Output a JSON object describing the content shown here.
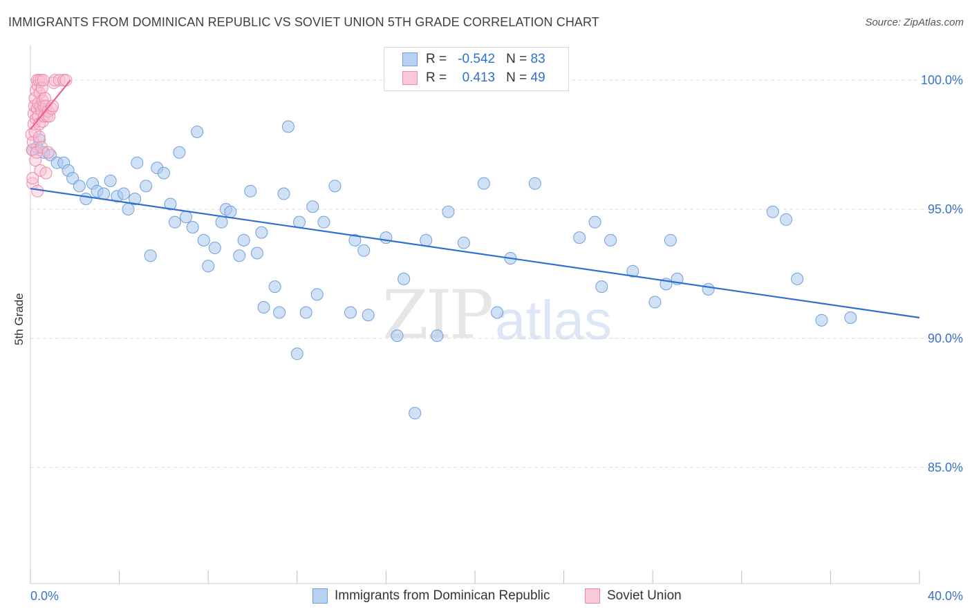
{
  "title": "IMMIGRANTS FROM DOMINICAN REPUBLIC VS SOVIET UNION 5TH GRADE CORRELATION CHART",
  "source": "Source: ZipAtlas.com",
  "watermark": {
    "zip": "ZIP",
    "atlas": "atlas"
  },
  "legend": {
    "rows": [
      {
        "r_label": "R =",
        "r_value": "-0.542",
        "n_label": "N =",
        "n_value": "83"
      },
      {
        "r_label": "R =",
        "r_value": "0.413",
        "n_label": "N =",
        "n_value": "49"
      }
    ]
  },
  "colors": {
    "blue_fill": "#aac8ef",
    "blue_stroke": "#6f9fdc",
    "blue_line": "#2f6fd1",
    "pink_fill": "#f8bfd0",
    "pink_stroke": "#ec8aa9",
    "pink_line": "#e8628d",
    "tick_text": "#3a72c8",
    "grid": "#dcdcdc"
  },
  "chart_data": {
    "type": "scatter",
    "title": "IMMIGRANTS FROM DOMINICAN REPUBLIC VS SOVIET UNION 5TH GRADE CORRELATION CHART",
    "xlabel": "",
    "ylabel": "5th Grade",
    "xlim": [
      0,
      40
    ],
    "ylim": [
      80.5,
      101.5
    ],
    "x_tick_labels": {
      "left": "0.0%",
      "right": "40.0%"
    },
    "y_ticks": [
      {
        "value": 100,
        "label": "100.0%"
      },
      {
        "value": 95,
        "label": "95.0%"
      },
      {
        "value": 90,
        "label": "90.0%"
      },
      {
        "value": 85,
        "label": "85.0%"
      }
    ],
    "series": [
      {
        "name": "Immigrants from Dominican Republic",
        "color": "blue",
        "r": -0.542,
        "n": 83,
        "trend": {
          "x0": 0,
          "y0": 95.8,
          "x1": 40,
          "y1": 90.8
        },
        "points": [
          [
            0.1,
            97.3
          ],
          [
            0.3,
            97.4
          ],
          [
            0.4,
            97.7
          ],
          [
            0.6,
            97.2
          ],
          [
            0.9,
            97.1
          ],
          [
            1.2,
            96.8
          ],
          [
            1.5,
            96.8
          ],
          [
            1.7,
            96.5
          ],
          [
            1.9,
            96.2
          ],
          [
            2.2,
            95.9
          ],
          [
            2.5,
            95.4
          ],
          [
            2.8,
            96.0
          ],
          [
            3.0,
            95.7
          ],
          [
            3.3,
            95.6
          ],
          [
            3.6,
            96.1
          ],
          [
            3.9,
            95.5
          ],
          [
            4.2,
            95.6
          ],
          [
            4.4,
            95.0
          ],
          [
            4.7,
            95.4
          ],
          [
            4.8,
            96.8
          ],
          [
            5.2,
            95.9
          ],
          [
            5.4,
            93.2
          ],
          [
            5.7,
            96.6
          ],
          [
            6.0,
            96.4
          ],
          [
            6.3,
            95.2
          ],
          [
            6.5,
            94.5
          ],
          [
            6.7,
            97.2
          ],
          [
            7.0,
            94.7
          ],
          [
            7.3,
            94.3
          ],
          [
            7.5,
            98.0
          ],
          [
            7.8,
            93.8
          ],
          [
            8.0,
            92.8
          ],
          [
            8.3,
            93.5
          ],
          [
            8.6,
            94.5
          ],
          [
            8.8,
            95.0
          ],
          [
            9.0,
            94.9
          ],
          [
            9.4,
            93.2
          ],
          [
            9.6,
            93.8
          ],
          [
            9.9,
            95.7
          ],
          [
            10.2,
            93.3
          ],
          [
            10.4,
            94.1
          ],
          [
            10.5,
            91.2
          ],
          [
            11.0,
            92.0
          ],
          [
            11.2,
            91.0
          ],
          [
            11.4,
            95.6
          ],
          [
            11.6,
            98.2
          ],
          [
            12.0,
            89.4
          ],
          [
            12.1,
            94.5
          ],
          [
            12.4,
            91.0
          ],
          [
            12.7,
            95.1
          ],
          [
            12.9,
            91.7
          ],
          [
            13.2,
            94.5
          ],
          [
            13.7,
            95.9
          ],
          [
            14.4,
            91.0
          ],
          [
            14.6,
            93.8
          ],
          [
            15.0,
            93.4
          ],
          [
            15.2,
            90.9
          ],
          [
            16.0,
            93.9
          ],
          [
            16.5,
            90.1
          ],
          [
            16.8,
            92.3
          ],
          [
            17.3,
            87.1
          ],
          [
            17.8,
            93.8
          ],
          [
            18.3,
            90.1
          ],
          [
            18.8,
            94.9
          ],
          [
            19.5,
            93.7
          ],
          [
            20.4,
            96.0
          ],
          [
            21.0,
            91.0
          ],
          [
            21.6,
            93.1
          ],
          [
            22.7,
            96.0
          ],
          [
            24.7,
            93.9
          ],
          [
            25.4,
            94.5
          ],
          [
            25.7,
            92.0
          ],
          [
            26.1,
            93.8
          ],
          [
            27.1,
            92.6
          ],
          [
            28.1,
            91.4
          ],
          [
            28.6,
            92.1
          ],
          [
            28.8,
            93.8
          ],
          [
            29.1,
            92.3
          ],
          [
            30.5,
            91.9
          ],
          [
            33.4,
            94.9
          ],
          [
            34.0,
            94.6
          ],
          [
            34.5,
            92.3
          ],
          [
            35.6,
            90.7
          ],
          [
            36.9,
            90.8
          ]
        ]
      },
      {
        "name": "Soviet Union",
        "color": "pink",
        "r": 0.413,
        "n": 49,
        "trend": {
          "x0": 0,
          "y0": 98.1,
          "x1": 1.8,
          "y1": 100.0
        },
        "points": [
          [
            0.05,
            97.9
          ],
          [
            0.08,
            97.3
          ],
          [
            0.1,
            96.0
          ],
          [
            0.1,
            96.2
          ],
          [
            0.12,
            97.6
          ],
          [
            0.15,
            98.3
          ],
          [
            0.15,
            98.7
          ],
          [
            0.18,
            99.0
          ],
          [
            0.2,
            99.3
          ],
          [
            0.2,
            98.0
          ],
          [
            0.22,
            96.9
          ],
          [
            0.25,
            98.5
          ],
          [
            0.25,
            99.6
          ],
          [
            0.28,
            97.2
          ],
          [
            0.3,
            98.9
          ],
          [
            0.3,
            100.0
          ],
          [
            0.33,
            99.8
          ],
          [
            0.35,
            98.6
          ],
          [
            0.35,
            99.1
          ],
          [
            0.38,
            100.0
          ],
          [
            0.4,
            97.8
          ],
          [
            0.4,
            98.3
          ],
          [
            0.42,
            99.5
          ],
          [
            0.45,
            96.5
          ],
          [
            0.45,
            99.0
          ],
          [
            0.48,
            100.0
          ],
          [
            0.5,
            98.8
          ],
          [
            0.5,
            97.4
          ],
          [
            0.52,
            99.7
          ],
          [
            0.55,
            98.4
          ],
          [
            0.55,
            99.2
          ],
          [
            0.58,
            100.0
          ],
          [
            0.6,
            99.0
          ],
          [
            0.62,
            98.6
          ],
          [
            0.65,
            99.3
          ],
          [
            0.7,
            99.0
          ],
          [
            0.75,
            98.6
          ],
          [
            0.7,
            96.4
          ],
          [
            0.8,
            98.8
          ],
          [
            0.8,
            97.2
          ],
          [
            0.85,
            98.6
          ],
          [
            0.95,
            98.9
          ],
          [
            1.0,
            99.0
          ],
          [
            1.05,
            99.9
          ],
          [
            1.1,
            100.0
          ],
          [
            1.3,
            100.0
          ],
          [
            1.5,
            100.0
          ],
          [
            1.6,
            100.0
          ],
          [
            0.32,
            95.7
          ]
        ]
      }
    ]
  }
}
